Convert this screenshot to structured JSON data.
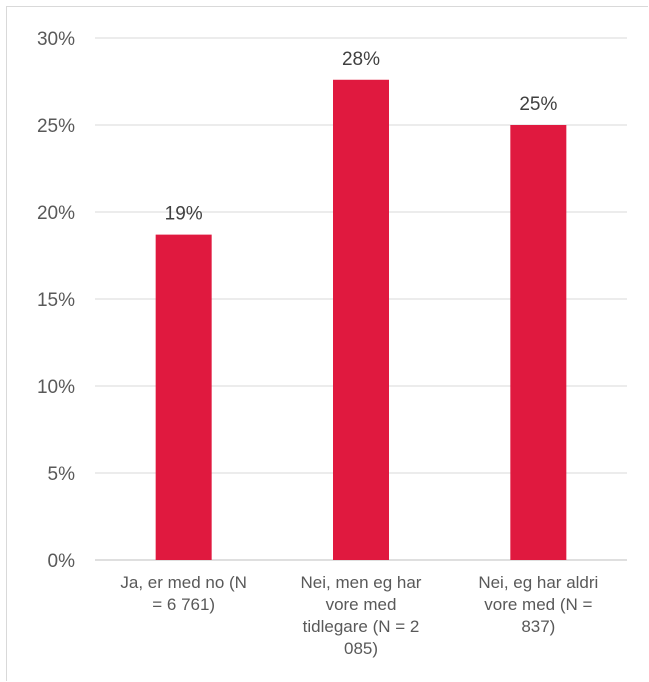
{
  "chart_data": {
    "type": "bar",
    "categories": [
      [
        "Ja, er med no (N",
        "= 6 761)"
      ],
      [
        "Nei, men eg har",
        "vore med",
        "tidlegare (N = 2",
        "085)"
      ],
      [
        "Nei, eg har aldri",
        "vore med (N =",
        "837)"
      ]
    ],
    "values": [
      18.7,
      27.6,
      25.0
    ],
    "data_labels": [
      "19%",
      "28%",
      "25%"
    ],
    "yticks": [
      0,
      5,
      10,
      15,
      20,
      25,
      30
    ],
    "ytick_labels": [
      "0%",
      "5%",
      "10%",
      "15%",
      "20%",
      "25%",
      "30%"
    ],
    "ylim": [
      0,
      30
    ],
    "grid": true,
    "legend": "none",
    "bar_color": "#E0193F",
    "grid_color": "#d9d9d9",
    "axis_color": "#bfbfbf"
  }
}
